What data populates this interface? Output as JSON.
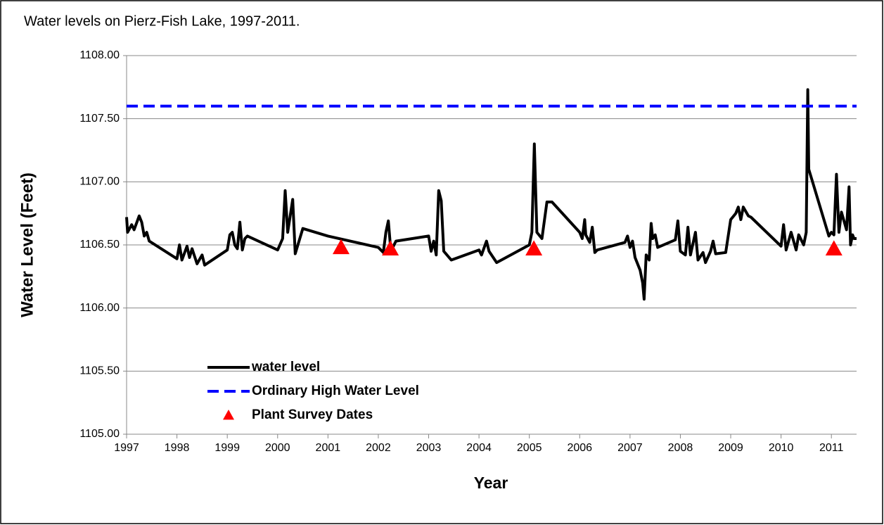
{
  "chart_data": {
    "type": "line",
    "title": "Water levels on Pierz-Fish Lake, 1997-2011.",
    "x_label": "Year",
    "y_label": "Water Level (Feet)",
    "xlim": [
      1997,
      2011.5
    ],
    "ylim": [
      1105,
      1108
    ],
    "xticks": [
      1997,
      1998,
      1999,
      2000,
      2001,
      2002,
      2003,
      2004,
      2005,
      2006,
      2007,
      2008,
      2009,
      2010,
      2011
    ],
    "yticks": [
      {
        "value": 1105,
        "label": "1105.00"
      },
      {
        "value": 1105.5,
        "label": "1105.50"
      },
      {
        "value": 1106,
        "label": "1106.00"
      },
      {
        "value": 1106.5,
        "label": "1106.50"
      },
      {
        "value": 1107,
        "label": "1107.00"
      },
      {
        "value": 1107.5,
        "label": "1107.50"
      },
      {
        "value": 1108,
        "label": "1108.00"
      }
    ],
    "grid": true,
    "legend": "lower left",
    "series": [
      {
        "name": "water level",
        "color": "#000000",
        "style": "solid",
        "x": [
          1997.0,
          1997.02,
          1997.1,
          1997.15,
          1997.25,
          1997.3,
          1997.35,
          1997.4,
          1997.45,
          1998.0,
          1998.05,
          1998.1,
          1998.2,
          1998.25,
          1998.3,
          1998.4,
          1998.5,
          1998.55,
          1999.0,
          1999.05,
          1999.1,
          1999.15,
          1999.2,
          1999.25,
          1999.3,
          1999.35,
          1999.4,
          2000.0,
          2000.1,
          2000.15,
          2000.2,
          2000.3,
          2000.35,
          2000.5,
          2001.0,
          2002.0,
          2002.1,
          2002.15,
          2002.2,
          2002.25,
          2002.35,
          2003.0,
          2003.05,
          2003.1,
          2003.15,
          2003.2,
          2003.25,
          2003.3,
          2003.45,
          2004.0,
          2004.05,
          2004.15,
          2004.2,
          2004.35,
          2005.0,
          2005.05,
          2005.1,
          2005.15,
          2005.25,
          2005.35,
          2005.45,
          2006.0,
          2006.05,
          2006.1,
          2006.12,
          2006.2,
          2006.25,
          2006.3,
          2006.35,
          2006.9,
          2006.95,
          2007.0,
          2007.05,
          2007.1,
          2007.2,
          2007.25,
          2007.28,
          2007.32,
          2007.38,
          2007.42,
          2007.45,
          2007.5,
          2007.55,
          2007.9,
          2007.95,
          2008.0,
          2008.1,
          2008.15,
          2008.2,
          2008.3,
          2008.35,
          2008.45,
          2008.5,
          2008.6,
          2008.65,
          2008.7,
          2008.9,
          2009.0,
          2009.1,
          2009.15,
          2009.2,
          2009.25,
          2009.35,
          2009.4,
          2010.0,
          2010.05,
          2010.1,
          2010.2,
          2010.3,
          2010.35,
          2010.45,
          2010.5,
          2010.53,
          2010.55,
          2010.95,
          2011.0,
          2011.05,
          2011.1,
          2011.15,
          2011.2,
          2011.3,
          2011.35,
          2011.38,
          2011.42,
          2011.45,
          2011.5
        ],
        "values": [
          1106.72,
          1106.6,
          1106.66,
          1106.62,
          1106.73,
          1106.68,
          1106.57,
          1106.6,
          1106.53,
          1106.39,
          1106.5,
          1106.38,
          1106.49,
          1106.4,
          1106.47,
          1106.35,
          1106.42,
          1106.34,
          1106.46,
          1106.58,
          1106.6,
          1106.5,
          1106.47,
          1106.68,
          1106.46,
          1106.55,
          1106.57,
          1106.46,
          1106.55,
          1106.93,
          1106.6,
          1106.86,
          1106.43,
          1106.63,
          1106.57,
          1106.48,
          1106.44,
          1106.6,
          1106.69,
          1106.45,
          1106.53,
          1106.57,
          1106.45,
          1106.53,
          1106.42,
          1106.93,
          1106.85,
          1106.45,
          1106.38,
          1106.46,
          1106.42,
          1106.53,
          1106.45,
          1106.36,
          1106.5,
          1106.6,
          1107.3,
          1106.6,
          1106.55,
          1106.84,
          1106.84,
          1106.6,
          1106.55,
          1106.7,
          1106.58,
          1106.52,
          1106.64,
          1106.44,
          1106.46,
          1106.52,
          1106.57,
          1106.48,
          1106.53,
          1106.4,
          1106.3,
          1106.2,
          1106.07,
          1106.42,
          1106.38,
          1106.67,
          1106.55,
          1106.58,
          1106.48,
          1106.54,
          1106.69,
          1106.45,
          1106.42,
          1106.64,
          1106.42,
          1106.6,
          1106.38,
          1106.44,
          1106.36,
          1106.45,
          1106.53,
          1106.43,
          1106.44,
          1106.7,
          1106.75,
          1106.8,
          1106.7,
          1106.8,
          1106.73,
          1106.72,
          1106.49,
          1106.66,
          1106.46,
          1106.6,
          1106.46,
          1106.58,
          1106.5,
          1106.6,
          1107.73,
          1107.1,
          1106.57,
          1106.6,
          1106.58,
          1107.06,
          1106.6,
          1106.76,
          1106.62,
          1106.96,
          1106.5,
          1106.58,
          1106.55,
          1106.55
        ]
      },
      {
        "name": "Ordinary High Water Level",
        "color": "#0000ff",
        "style": "dashed",
        "x": [
          1997,
          2011.5
        ],
        "values": [
          1107.6,
          1107.6
        ]
      },
      {
        "name": "Plant Survey Dates",
        "color": "#ff0000",
        "style": "markers",
        "x": [
          2001.26,
          2002.24,
          2005.09,
          2011.05
        ],
        "values": [
          1106.48,
          1106.47,
          1106.47,
          1106.47
        ]
      }
    ]
  }
}
